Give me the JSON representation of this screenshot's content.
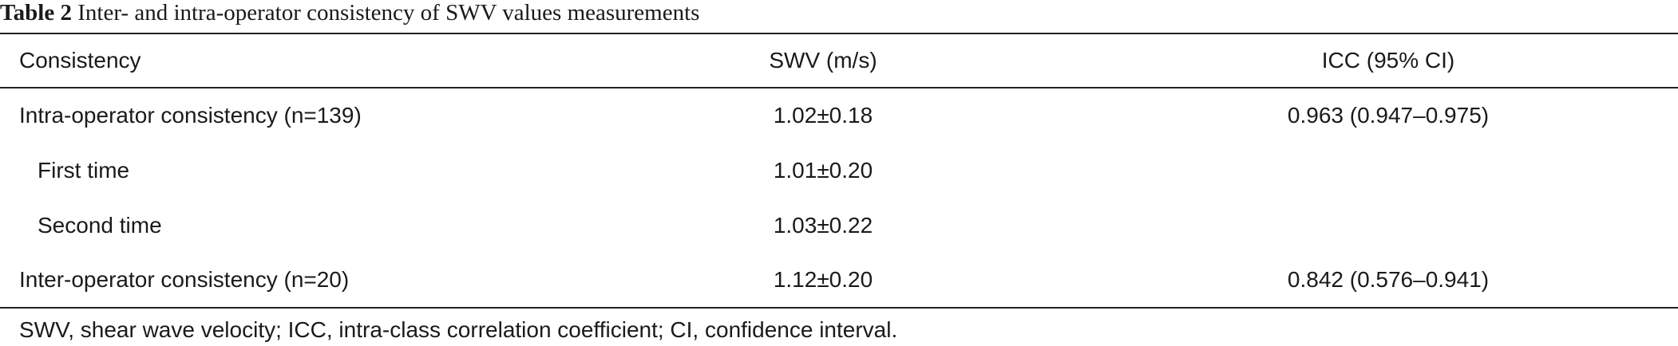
{
  "caption": {
    "label": "Table 2",
    "text": "Inter- and intra-operator consistency of SWV values measurements"
  },
  "table": {
    "header": [
      "Consistency",
      "SWV (m/s)",
      "ICC (95% CI)"
    ],
    "rows": [
      [
        "Intra-operator consistency (n=139)",
        "1.02±0.18",
        "0.963 (0.947–0.975)"
      ],
      [
        "First time",
        "1.01±0.20"
      ],
      [
        "Second time",
        "1.03±0.22"
      ],
      [
        "Inter-operator consistency (n=20)",
        "1.12±0.20",
        "0.842 (0.576–0.941)"
      ]
    ]
  },
  "footnote": "SWV, shear wave velocity; ICC, intra-class correlation coefficient; CI, confidence interval."
}
